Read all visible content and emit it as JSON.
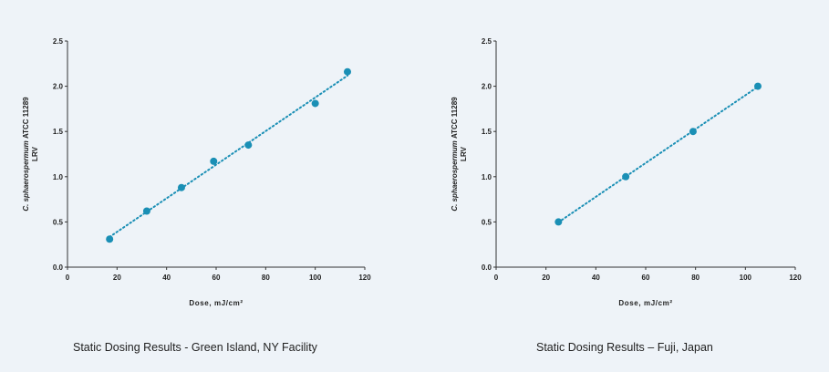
{
  "chart_data": [
    {
      "type": "scatter",
      "title": "Static Dosing Results - Green Island, NY Facility",
      "xlabel": "Dose, mJ/cm²",
      "ylabel_line1": "C. sphaerospermum ATCC 11289",
      "ylabel_line2": "LRV",
      "xlim": [
        0,
        120
      ],
      "ylim": [
        0.0,
        2.5
      ],
      "xticks": [
        0,
        20,
        40,
        60,
        80,
        100,
        120
      ],
      "yticks": [
        "0.0",
        "0.5",
        "1.0",
        "1.5",
        "2.0",
        "2.5"
      ],
      "trendline": "linear, dotted",
      "color": "#1a8fb5",
      "x": [
        17,
        32,
        46,
        59,
        73,
        100,
        113
      ],
      "y": [
        0.31,
        0.62,
        0.88,
        1.17,
        1.35,
        1.81,
        2.16
      ]
    },
    {
      "type": "scatter",
      "title": "Static Dosing Results – Fuji, Japan",
      "xlabel": "Dose, mJ/cm²",
      "ylabel_line1": "C. sphaerospermum ATCC 11289",
      "ylabel_line2": "LRV",
      "xlim": [
        0,
        120
      ],
      "ylim": [
        0.0,
        2.5
      ],
      "xticks": [
        0,
        20,
        40,
        60,
        80,
        100,
        120
      ],
      "yticks": [
        "0.0",
        "0.5",
        "1.0",
        "1.5",
        "2.0",
        "2.5"
      ],
      "trendline": "linear, dotted",
      "color": "#1a8fb5",
      "x": [
        25,
        52,
        79,
        105
      ],
      "y": [
        0.5,
        1.0,
        1.5,
        2.0
      ]
    }
  ]
}
